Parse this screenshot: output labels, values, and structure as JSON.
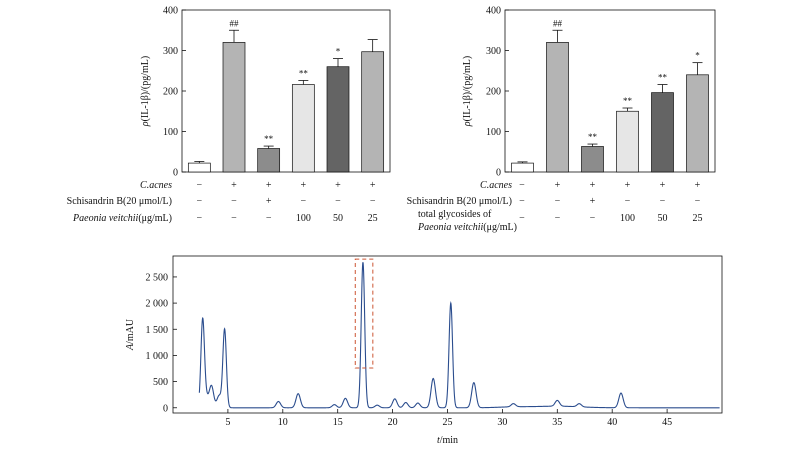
{
  "chart_data": [
    {
      "type": "bar",
      "ylabel_prefix": "ρ",
      "ylabel_rest": "(IL-1β)/(pg/mL)",
      "ylim": [
        0,
        400
      ],
      "yticks": [
        "0",
        "100",
        "200",
        "300",
        "400"
      ],
      "values": [
        22,
        320,
        58,
        216,
        260,
        297
      ],
      "errors": [
        4,
        30,
        6,
        10,
        20,
        30
      ],
      "significance": [
        "",
        "##",
        "**",
        "**",
        "*",
        ""
      ],
      "bar_colors": [
        "#ffffff",
        "#b4b4b4",
        "#8c8c8c",
        "#e6e6e6",
        "#646464",
        "#b4b4b4"
      ],
      "conditions": [
        {
          "label": "C.acnes",
          "italic": true,
          "values": [
            "−",
            "+",
            "+",
            "+",
            "+",
            "+"
          ]
        },
        {
          "label": "Schisandrin B(20 μmol/L)",
          "italic": false,
          "values": [
            "−",
            "−",
            "+",
            "−",
            "−",
            "−"
          ]
        },
        {
          "label_italic": "Paeonia veitchii",
          "label_rest": "(μg/mL)",
          "values": [
            "−",
            "−",
            "−",
            "100",
            "50",
            "25"
          ]
        }
      ]
    },
    {
      "type": "bar",
      "ylabel_prefix": "ρ",
      "ylabel_rest": "(IL-1β)/(pg/mL)",
      "ylim": [
        0,
        400
      ],
      "yticks": [
        "0",
        "100",
        "200",
        "300",
        "400"
      ],
      "values": [
        22,
        320,
        63,
        150,
        196,
        240
      ],
      "errors": [
        3,
        30,
        6,
        8,
        20,
        30
      ],
      "significance": [
        "",
        "##",
        "**",
        "**",
        "**",
        "*"
      ],
      "bar_colors": [
        "#ffffff",
        "#b4b4b4",
        "#8c8c8c",
        "#e6e6e6",
        "#646464",
        "#b4b4b4"
      ],
      "conditions": [
        {
          "label": "C.acnes",
          "italic": true,
          "values": [
            "−",
            "+",
            "+",
            "+",
            "+",
            "+"
          ]
        },
        {
          "label": "Schisandrin B(20 μmol/L)",
          "italic": false,
          "values": [
            "−",
            "−",
            "+",
            "−",
            "−",
            "−"
          ]
        },
        {
          "label_line1": "total glycosides of",
          "label_italic": "Paeonia veitchii",
          "label_rest": "(μg/mL)",
          "values": [
            "−",
            "−",
            "−",
            "100",
            "50",
            "25"
          ]
        }
      ]
    },
    {
      "type": "line",
      "xlabel_italic": "t",
      "xlabel_rest": "/min",
      "ylabel_italic": "A",
      "ylabel_rest": "/mAU",
      "xlim": [
        0,
        50
      ],
      "ylim": [
        -100,
        2900
      ],
      "xticks": [
        5,
        10,
        15,
        20,
        25,
        30,
        35,
        40,
        45
      ],
      "yticks": [
        0,
        500,
        1000,
        1500,
        2000,
        2500
      ],
      "ytick_labels": [
        "0",
        "500",
        "1 000",
        "1 500",
        "2 000",
        "2 500"
      ],
      "line_color": "#2b4d8e",
      "highlight_box": {
        "x_range": [
          16.6,
          18.2
        ],
        "y_range": [
          760,
          2840
        ],
        "color": "#cc5533"
      },
      "peaks": [
        {
          "t": 2.7,
          "h": 1650
        },
        {
          "t": 3.0,
          "h": 200
        },
        {
          "t": 3.5,
          "h": 420
        },
        {
          "t": 4.2,
          "h": 230
        },
        {
          "t": 4.7,
          "h": 1500
        },
        {
          "t": 9.6,
          "h": 120
        },
        {
          "t": 11.4,
          "h": 270
        },
        {
          "t": 14.7,
          "h": 60
        },
        {
          "t": 15.7,
          "h": 180
        },
        {
          "t": 17.3,
          "h": 2780
        },
        {
          "t": 18.6,
          "h": 50
        },
        {
          "t": 20.2,
          "h": 170
        },
        {
          "t": 21.2,
          "h": 100
        },
        {
          "t": 22.3,
          "h": 90
        },
        {
          "t": 23.7,
          "h": 560
        },
        {
          "t": 25.3,
          "h": 2000
        },
        {
          "t": 27.4,
          "h": 480
        },
        {
          "t": 31.0,
          "h": 60
        },
        {
          "t": 35.0,
          "h": 110
        },
        {
          "t": 37.0,
          "h": 60
        },
        {
          "t": 40.8,
          "h": 280
        }
      ]
    }
  ]
}
